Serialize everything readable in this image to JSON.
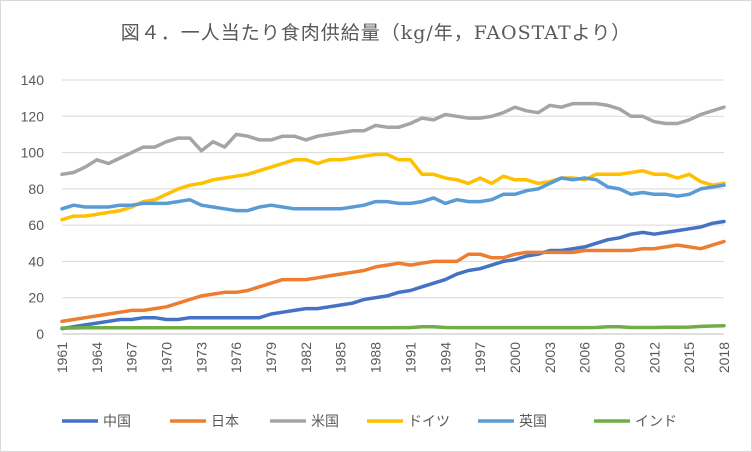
{
  "chart_data": {
    "type": "line",
    "title": "図４．一人当たり食肉供給量（kg/年，FAOSTATより）",
    "xlabel": "",
    "ylabel": "",
    "ylim": [
      0,
      140
    ],
    "yticks": [
      0,
      20,
      40,
      60,
      80,
      100,
      120,
      140
    ],
    "xlim": [
      1961,
      2018
    ],
    "xticks": [
      1961,
      1964,
      1967,
      1970,
      1973,
      1976,
      1979,
      1982,
      1985,
      1988,
      1991,
      1994,
      1997,
      2000,
      2003,
      2006,
      2009,
      2012,
      2015,
      2018
    ],
    "grid": true,
    "legend": "bottom",
    "series": [
      {
        "name": "中国",
        "color": "#4472c4",
        "values": [
          3,
          4,
          5,
          6,
          7,
          8,
          8,
          9,
          9,
          8,
          8,
          9,
          9,
          9,
          9,
          9,
          9,
          9,
          11,
          12,
          13,
          14,
          14,
          15,
          16,
          17,
          19,
          20,
          21,
          23,
          24,
          26,
          28,
          30,
          33,
          35,
          36,
          38,
          40,
          41,
          43,
          44,
          46,
          46,
          47,
          48,
          50,
          52,
          53,
          55,
          56,
          55,
          56,
          57,
          58,
          59,
          61,
          62
        ]
      },
      {
        "name": "日本",
        "color": "#ed7d31",
        "values": [
          7,
          8,
          9,
          10,
          11,
          12,
          13,
          13,
          14,
          15,
          17,
          19,
          21,
          22,
          23,
          23,
          24,
          26,
          28,
          30,
          30,
          30,
          31,
          32,
          33,
          34,
          35,
          37,
          38,
          39,
          38,
          39,
          40,
          40,
          40,
          44,
          44,
          42,
          42,
          44,
          45,
          45,
          45,
          45,
          45,
          46,
          46,
          46,
          46,
          46,
          47,
          47,
          48,
          49,
          48,
          47,
          49,
          51
        ]
      },
      {
        "name": "米国",
        "color": "#a5a5a5",
        "values": [
          88,
          89,
          92,
          96,
          94,
          97,
          100,
          103,
          103,
          106,
          108,
          108,
          101,
          106,
          103,
          110,
          109,
          107,
          107,
          109,
          109,
          107,
          109,
          110,
          111,
          112,
          112,
          115,
          114,
          114,
          116,
          119,
          118,
          121,
          120,
          119,
          119,
          120,
          122,
          125,
          123,
          122,
          126,
          125,
          127,
          127,
          127,
          126,
          124,
          120,
          120,
          117,
          116,
          116,
          118,
          121,
          123,
          125
        ]
      },
      {
        "name": "ドイツ",
        "color": "#ffc000",
        "values": [
          63,
          65,
          65,
          66,
          67,
          68,
          70,
          73,
          74,
          77,
          80,
          82,
          83,
          85,
          86,
          87,
          88,
          90,
          92,
          94,
          96,
          96,
          94,
          96,
          96,
          97,
          98,
          99,
          99,
          96,
          96,
          88,
          88,
          86,
          85,
          83,
          86,
          83,
          87,
          85,
          85,
          83,
          84,
          86,
          86,
          85,
          88,
          88,
          88,
          89,
          90,
          88,
          88,
          86,
          88,
          84,
          82,
          83
        ]
      },
      {
        "name": "英国",
        "color": "#5b9bd5",
        "values": [
          69,
          71,
          70,
          70,
          70,
          71,
          71,
          72,
          72,
          72,
          73,
          74,
          71,
          70,
          69,
          68,
          68,
          70,
          71,
          70,
          69,
          69,
          69,
          69,
          69,
          70,
          71,
          73,
          73,
          72,
          72,
          73,
          75,
          72,
          74,
          73,
          73,
          74,
          77,
          77,
          79,
          80,
          83,
          86,
          85,
          86,
          85,
          81,
          80,
          77,
          78,
          77,
          77,
          76,
          77,
          80,
          81,
          82
        ]
      },
      {
        "name": "インド",
        "color": "#70ad47",
        "values": [
          3.3,
          3.3,
          3.4,
          3.4,
          3.4,
          3.4,
          3.4,
          3.4,
          3.4,
          3.4,
          3.4,
          3.4,
          3.4,
          3.4,
          3.4,
          3.4,
          3.4,
          3.4,
          3.4,
          3.4,
          3.4,
          3.4,
          3.4,
          3.4,
          3.4,
          3.4,
          3.4,
          3.4,
          3.4,
          3.5,
          3.5,
          4.0,
          4.0,
          3.6,
          3.5,
          3.5,
          3.5,
          3.5,
          3.5,
          3.5,
          3.5,
          3.5,
          3.5,
          3.5,
          3.5,
          3.5,
          3.6,
          4.0,
          4.0,
          3.6,
          3.6,
          3.6,
          3.7,
          3.7,
          3.8,
          4.2,
          4.4,
          4.6
        ]
      }
    ]
  }
}
